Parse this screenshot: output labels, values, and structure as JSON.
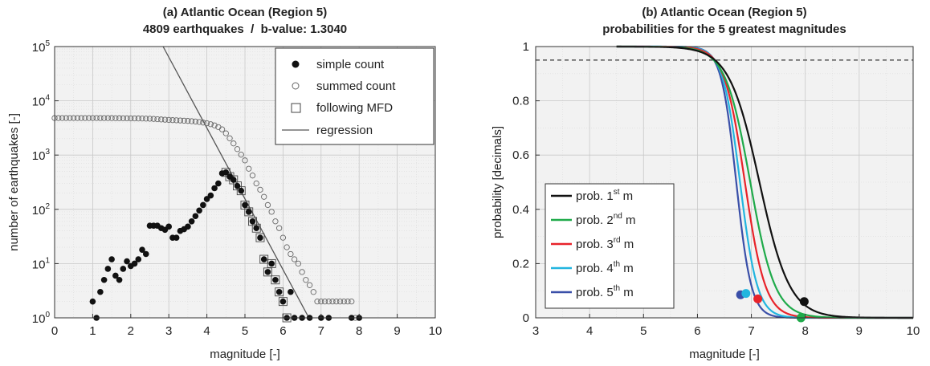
{
  "chart_data": [
    {
      "type": "scatter",
      "title": "(a) Atlantic Ocean (Region 5)",
      "subtitle": "4809 earthquakes  /  b-value: 1.3040",
      "xlabel": "magnitude [-]",
      "ylabel": "number of earthquakes [-]",
      "xlim": [
        0,
        10
      ],
      "ylim": [
        1,
        100000
      ],
      "yscale": "log",
      "xticks": [
        "0",
        "1",
        "2",
        "3",
        "4",
        "5",
        "6",
        "7",
        "8",
        "9",
        "10"
      ],
      "yticks": [
        {
          "base": "10",
          "exp": "0",
          "value": 1
        },
        {
          "base": "10",
          "exp": "1",
          "value": 10
        },
        {
          "base": "10",
          "exp": "2",
          "value": 100
        },
        {
          "base": "10",
          "exp": "3",
          "value": 1000
        },
        {
          "base": "10",
          "exp": "4",
          "value": 10000
        },
        {
          "base": "10",
          "exp": "5",
          "value": 100000
        }
      ],
      "grid": true,
      "legend_position": "top-right",
      "series": [
        {
          "name": "simple count",
          "marker": "filled-circle",
          "color": "#111111",
          "points": [
            [
              1.0,
              2
            ],
            [
              1.1,
              1
            ],
            [
              1.2,
              3
            ],
            [
              1.3,
              5
            ],
            [
              1.4,
              8
            ],
            [
              1.5,
              12
            ],
            [
              1.6,
              6
            ],
            [
              1.7,
              5
            ],
            [
              1.8,
              8
            ],
            [
              1.9,
              11
            ],
            [
              2.0,
              9
            ],
            [
              2.1,
              10
            ],
            [
              2.2,
              12
            ],
            [
              2.3,
              18
            ],
            [
              2.4,
              15
            ],
            [
              2.5,
              50
            ],
            [
              2.6,
              50
            ],
            [
              2.7,
              50
            ],
            [
              2.8,
              45
            ],
            [
              2.9,
              42
            ],
            [
              3.0,
              48
            ],
            [
              3.1,
              30
            ],
            [
              3.2,
              30
            ],
            [
              3.3,
              40
            ],
            [
              3.4,
              43
            ],
            [
              3.5,
              48
            ],
            [
              3.6,
              60
            ],
            [
              3.7,
              75
            ],
            [
              3.8,
              95
            ],
            [
              3.9,
              120
            ],
            [
              4.0,
              155
            ],
            [
              4.1,
              180
            ],
            [
              4.2,
              245
            ],
            [
              4.3,
              300
            ],
            [
              4.4,
              460
            ],
            [
              4.5,
              480
            ],
            [
              4.6,
              400
            ],
            [
              4.7,
              350
            ],
            [
              4.8,
              270
            ],
            [
              4.9,
              220
            ],
            [
              5.0,
              120
            ],
            [
              5.1,
              90
            ],
            [
              5.2,
              60
            ],
            [
              5.3,
              45
            ],
            [
              5.4,
              30
            ],
            [
              5.5,
              12
            ],
            [
              5.6,
              7
            ],
            [
              5.7,
              10
            ],
            [
              5.8,
              5
            ],
            [
              5.9,
              3
            ],
            [
              6.0,
              2
            ],
            [
              6.1,
              1
            ],
            [
              6.2,
              3
            ],
            [
              6.3,
              1
            ],
            [
              6.5,
              1
            ],
            [
              6.7,
              1
            ],
            [
              7.0,
              1
            ],
            [
              7.2,
              1
            ],
            [
              7.8,
              1
            ],
            [
              8.0,
              1
            ]
          ]
        },
        {
          "name": "summed count",
          "marker": "open-circle",
          "color": "#666666",
          "points": [
            [
              0.0,
              4809
            ],
            [
              0.1,
              4809
            ],
            [
              0.2,
              4809
            ],
            [
              0.3,
              4809
            ],
            [
              0.4,
              4809
            ],
            [
              0.5,
              4809
            ],
            [
              0.6,
              4809
            ],
            [
              0.7,
              4809
            ],
            [
              0.8,
              4809
            ],
            [
              0.9,
              4809
            ],
            [
              1.0,
              4809
            ],
            [
              1.1,
              4807
            ],
            [
              1.2,
              4806
            ],
            [
              1.3,
              4803
            ],
            [
              1.4,
              4798
            ],
            [
              1.5,
              4790
            ],
            [
              1.6,
              4778
            ],
            [
              1.7,
              4772
            ],
            [
              1.8,
              4767
            ],
            [
              1.9,
              4759
            ],
            [
              2.0,
              4748
            ],
            [
              2.1,
              4739
            ],
            [
              2.2,
              4729
            ],
            [
              2.3,
              4717
            ],
            [
              2.4,
              4699
            ],
            [
              2.5,
              4684
            ],
            [
              2.6,
              4634
            ],
            [
              2.7,
              4584
            ],
            [
              2.8,
              4534
            ],
            [
              2.9,
              4489
            ],
            [
              3.0,
              4447
            ],
            [
              3.1,
              4399
            ],
            [
              3.2,
              4369
            ],
            [
              3.3,
              4339
            ],
            [
              3.4,
              4299
            ],
            [
              3.5,
              4256
            ],
            [
              3.6,
              4208
            ],
            [
              3.7,
              4148
            ],
            [
              3.8,
              4073
            ],
            [
              3.9,
              3978
            ],
            [
              4.0,
              3858
            ],
            [
              4.1,
              3703
            ],
            [
              4.2,
              3523
            ],
            [
              4.3,
              3278
            ],
            [
              4.4,
              2978
            ],
            [
              4.5,
              2518
            ],
            [
              4.6,
              2038
            ],
            [
              4.7,
              1638
            ],
            [
              4.8,
              1288
            ],
            [
              4.9,
              1018
            ],
            [
              5.0,
              798
            ],
            [
              5.1,
              560
            ],
            [
              5.2,
              420
            ],
            [
              5.3,
              300
            ],
            [
              5.4,
              230
            ],
            [
              5.5,
              170
            ],
            [
              5.6,
              120
            ],
            [
              5.7,
              90
            ],
            [
              5.8,
              60
            ],
            [
              5.9,
              45
            ],
            [
              6.0,
              30
            ],
            [
              6.1,
              20
            ],
            [
              6.2,
              15
            ],
            [
              6.3,
              12
            ],
            [
              6.4,
              10
            ],
            [
              6.5,
              7
            ],
            [
              6.6,
              5
            ],
            [
              6.7,
              4
            ],
            [
              6.8,
              3
            ],
            [
              6.9,
              2
            ],
            [
              7.0,
              2
            ],
            [
              7.1,
              2
            ],
            [
              7.2,
              2
            ],
            [
              7.3,
              2
            ],
            [
              7.4,
              2
            ],
            [
              7.5,
              2
            ],
            [
              7.6,
              2
            ],
            [
              7.7,
              2
            ],
            [
              7.8,
              2
            ],
            [
              7.9,
              1
            ],
            [
              8.0,
              1
            ]
          ]
        },
        {
          "name": "following MFD",
          "marker": "open-square",
          "color": "#444444",
          "points": [
            [
              4.5,
              480
            ],
            [
              4.6,
              400
            ],
            [
              4.7,
              350
            ],
            [
              4.8,
              270
            ],
            [
              4.9,
              220
            ],
            [
              5.0,
              120
            ],
            [
              5.1,
              90
            ],
            [
              5.2,
              60
            ],
            [
              5.3,
              45
            ],
            [
              5.4,
              30
            ],
            [
              5.5,
              12
            ],
            [
              5.6,
              7
            ],
            [
              5.7,
              10
            ],
            [
              5.8,
              5
            ],
            [
              5.9,
              3
            ],
            [
              6.0,
              2
            ],
            [
              6.1,
              1
            ]
          ]
        },
        {
          "name": "regression",
          "marker": "line",
          "color": "#555555",
          "line": [
            [
              2.85,
              100000
            ],
            [
              6.68,
              1
            ]
          ]
        }
      ]
    },
    {
      "type": "line",
      "title": "(b) Atlantic Ocean (Region 5)",
      "subtitle": "probabilities for the 5 greatest magnitudes",
      "xlabel": "magnitude [-]",
      "ylabel": "probability [decimals]",
      "xlim": [
        3,
        10
      ],
      "ylim": [
        0,
        1
      ],
      "xticks": [
        "3",
        "4",
        "5",
        "6",
        "7",
        "8",
        "9",
        "10"
      ],
      "yticks": [
        "0",
        "0.2",
        "0.4",
        "0.6",
        "0.8",
        "1"
      ],
      "grid": true,
      "legend_position": "bottom-left",
      "reference_line": {
        "y": 0.95,
        "style": "dashed"
      },
      "x_start": 4.5,
      "series": [
        {
          "label": "prob. 1",
          "sup": "st",
          "suffix": " m",
          "color": "#111111",
          "center": 7.15,
          "width": 0.28,
          "marker": [
            7.98,
            0.06
          ]
        },
        {
          "label": "prob. 2",
          "sup": "nd",
          "suffix": " m",
          "color": "#1faa4a",
          "center": 6.98,
          "width": 0.23,
          "marker": [
            7.92,
            0.0
          ]
        },
        {
          "label": "prob. 3",
          "sup": "rd",
          "suffix": " m",
          "color": "#e8232a",
          "center": 6.88,
          "width": 0.19,
          "marker": [
            7.12,
            0.07
          ]
        },
        {
          "label": "prob. 4",
          "sup": "th",
          "suffix": " m",
          "color": "#22b5df",
          "center": 6.79,
          "width": 0.16,
          "marker": [
            6.9,
            0.09
          ]
        },
        {
          "label": "prob. 5",
          "sup": "th",
          "suffix": " m",
          "color": "#3a4fa8",
          "center": 6.72,
          "width": 0.14,
          "marker": [
            6.8,
            0.085
          ]
        }
      ]
    }
  ]
}
